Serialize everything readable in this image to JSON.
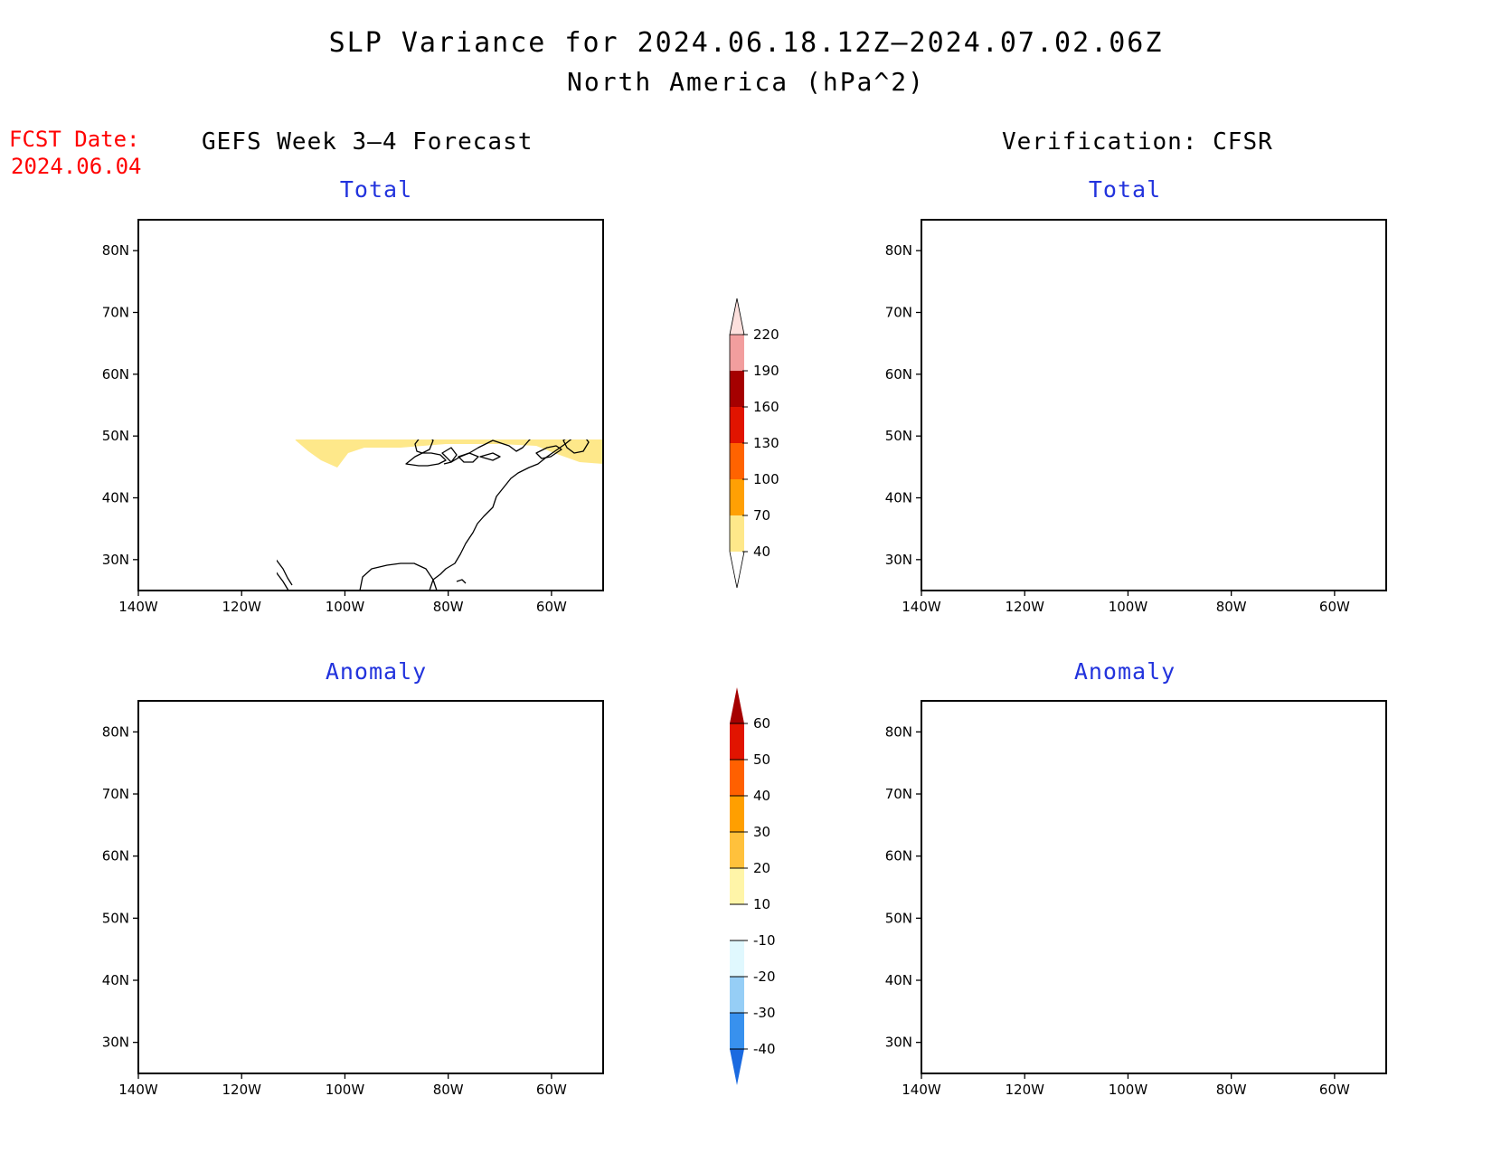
{
  "title": {
    "line1": "SLP Variance for 2024.06.18.12Z–2024.07.02.06Z",
    "line2": "North America (hPa^2)"
  },
  "fcst_date": {
    "label": "FCST Date:",
    "value": "2024.06.04"
  },
  "columns": {
    "left": "GEFS Week 3–4 Forecast",
    "right": "Verification: CFSR"
  },
  "panels": {
    "forecast_total": {
      "title": "Total"
    },
    "forecast_anomaly": {
      "title": "Anomaly"
    },
    "verification_total": {
      "title": "Total"
    },
    "verification_anomaly": {
      "title": "Anomaly"
    }
  },
  "axes": {
    "lat_ticks": [
      "30N",
      "40N",
      "50N",
      "60N",
      "70N",
      "80N"
    ],
    "lon_ticks": [
      "140W",
      "120W",
      "100W",
      "80W",
      "60W"
    ],
    "lat_range": [
      25,
      85
    ],
    "lon_range": [
      -140,
      -50
    ]
  },
  "colorbars": {
    "total": {
      "labels": [
        "40",
        "70",
        "100",
        "130",
        "160",
        "190",
        "220"
      ],
      "colors": [
        "#fee88a",
        "#ffa004",
        "#ff6300",
        "#e11400",
        "#a50000",
        "#f29e9e",
        "#fde0dd"
      ]
    },
    "anomaly": {
      "labels": [
        "-40",
        "-30",
        "-20",
        "-10",
        "10",
        "20",
        "30",
        "40",
        "50",
        "60"
      ],
      "colors": [
        "#1a6ae0",
        "#3891ee",
        "#96cef6",
        "#e0f8fe",
        "#ffffff",
        "#fff5a8",
        "#ffc13c",
        "#ff9f00",
        "#ff6000",
        "#e11400",
        "#a50000"
      ]
    }
  },
  "colors": {
    "title_text": "#000000",
    "fcst_text": "#ff0000",
    "panel_title": "#2233dd"
  }
}
